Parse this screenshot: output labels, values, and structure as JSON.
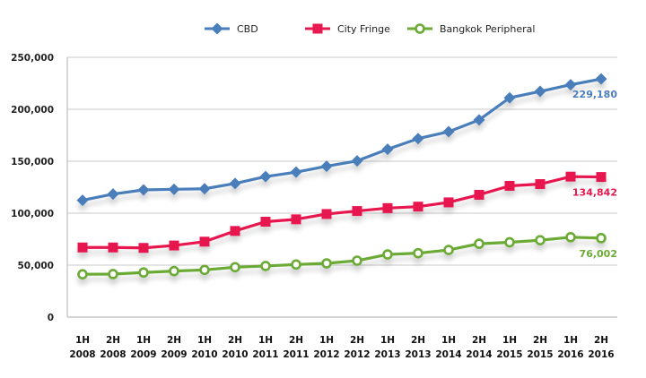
{
  "chart_data": {
    "type": "line",
    "title": "",
    "xlabel": "",
    "ylabel": "",
    "ylim": [
      0,
      250000
    ],
    "yticks": [
      0,
      50000,
      100000,
      150000,
      200000,
      250000
    ],
    "ytick_labels": [
      "0",
      "50,000",
      "100,000",
      "150,000",
      "200,000",
      "250,000"
    ],
    "grid": true,
    "legend_position": "top-center",
    "categories": [
      [
        "1H",
        "2008"
      ],
      [
        "2H",
        "2008"
      ],
      [
        "1H",
        "2009"
      ],
      [
        "2H",
        "2009"
      ],
      [
        "1H",
        "2010"
      ],
      [
        "2H",
        "2010"
      ],
      [
        "1H",
        "2011"
      ],
      [
        "2H",
        "2011"
      ],
      [
        "1H",
        "2012"
      ],
      [
        "2H",
        "2012"
      ],
      [
        "1H",
        "2013"
      ],
      [
        "2H",
        "2013"
      ],
      [
        "1H",
        "2014"
      ],
      [
        "2H",
        "2014"
      ],
      [
        "1H",
        "2015"
      ],
      [
        "2H",
        "2015"
      ],
      [
        "1H",
        "2016"
      ],
      [
        "2H",
        "2016"
      ]
    ],
    "series": [
      {
        "name": "CBD",
        "color": "#4a7ebb",
        "marker": "diamond",
        "values": [
          112400,
          118400,
          122400,
          123000,
          123500,
          128600,
          135200,
          139500,
          145200,
          150300,
          161500,
          171800,
          178400,
          189800,
          211000,
          217200,
          223600,
          229180
        ],
        "end_label": "229,180"
      },
      {
        "name": "City Fringe",
        "color": "#e8194f",
        "marker": "square",
        "values": [
          67000,
          67000,
          66600,
          68900,
          72600,
          82900,
          91800,
          94100,
          99200,
          102100,
          104900,
          106300,
          110400,
          117700,
          126300,
          128000,
          135200,
          134842
        ],
        "end_label": "134,842"
      },
      {
        "name": "Bangkok Peripheral",
        "color": "#6aaa35",
        "marker": "circle",
        "values": [
          41200,
          41400,
          42900,
          44300,
          45400,
          48000,
          49200,
          50600,
          51700,
          54300,
          60300,
          61500,
          64600,
          70600,
          72000,
          74000,
          76900,
          76002
        ],
        "end_label": "76,002"
      }
    ]
  }
}
